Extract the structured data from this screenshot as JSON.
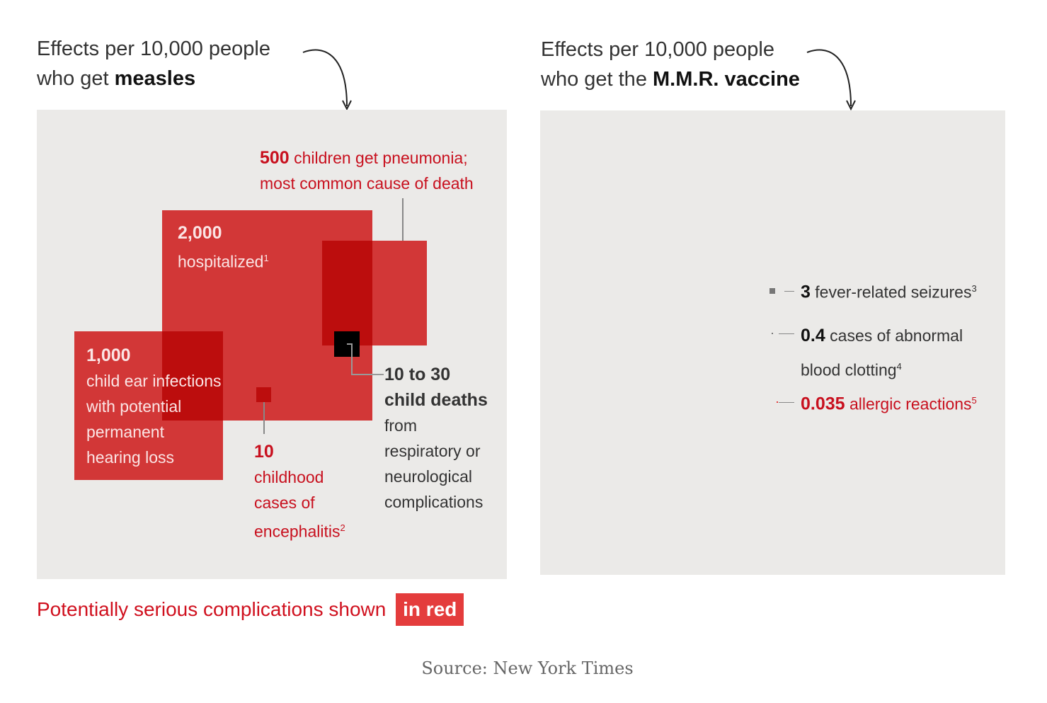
{
  "chart_data": {
    "type": "area-squares",
    "panels": [
      {
        "title_prefix": "Effects per 10,000 people",
        "title_line2": "who get",
        "title_bold": "measles",
        "items": [
          {
            "value": 2000,
            "value_label": "2,000",
            "text": "hospitalized",
            "note": "1",
            "serious": true
          },
          {
            "value": 500,
            "value_label": "500",
            "text": "children get pneumonia;",
            "text2": "most common cause of death",
            "serious": true
          },
          {
            "value": 1000,
            "value_label": "1,000",
            "lines": [
              "child ear infections",
              "with potential",
              "permanent",
              "hearing loss"
            ],
            "serious": true
          },
          {
            "value": 10,
            "value_label": "10",
            "lines": [
              "childhood",
              "cases of",
              "encephalitis"
            ],
            "note": "2",
            "serious": true
          },
          {
            "value": 30,
            "value_range": [
              10,
              30
            ],
            "value_label": "10 to 30",
            "bold2": "child deaths",
            "lines": [
              "from",
              "respiratory or",
              "neurological",
              "complications"
            ],
            "serious": false
          }
        ]
      },
      {
        "title_prefix": "Effects per 10,000 people",
        "title_line2": "who get the",
        "title_bold": "M.M.R. vaccine",
        "items": [
          {
            "value": 3,
            "value_label": "3",
            "text": "fever-related seizures",
            "note": "3",
            "serious": false
          },
          {
            "value": 0.4,
            "value_label": "0.4",
            "text": "cases of abnormal",
            "text2": "blood clotting",
            "note": "4",
            "serious": false
          },
          {
            "value": 0.035,
            "value_label": "0.035",
            "text": "allergic reactions",
            "note": "5",
            "serious": true
          }
        ]
      }
    ],
    "legend": {
      "text": "Potentially serious complications shown",
      "highlight": "in red"
    },
    "colors": {
      "serious": "#e43c3c",
      "deaths": "#000000",
      "panel": "#ebeae8"
    }
  },
  "source": "Source: New York Times"
}
